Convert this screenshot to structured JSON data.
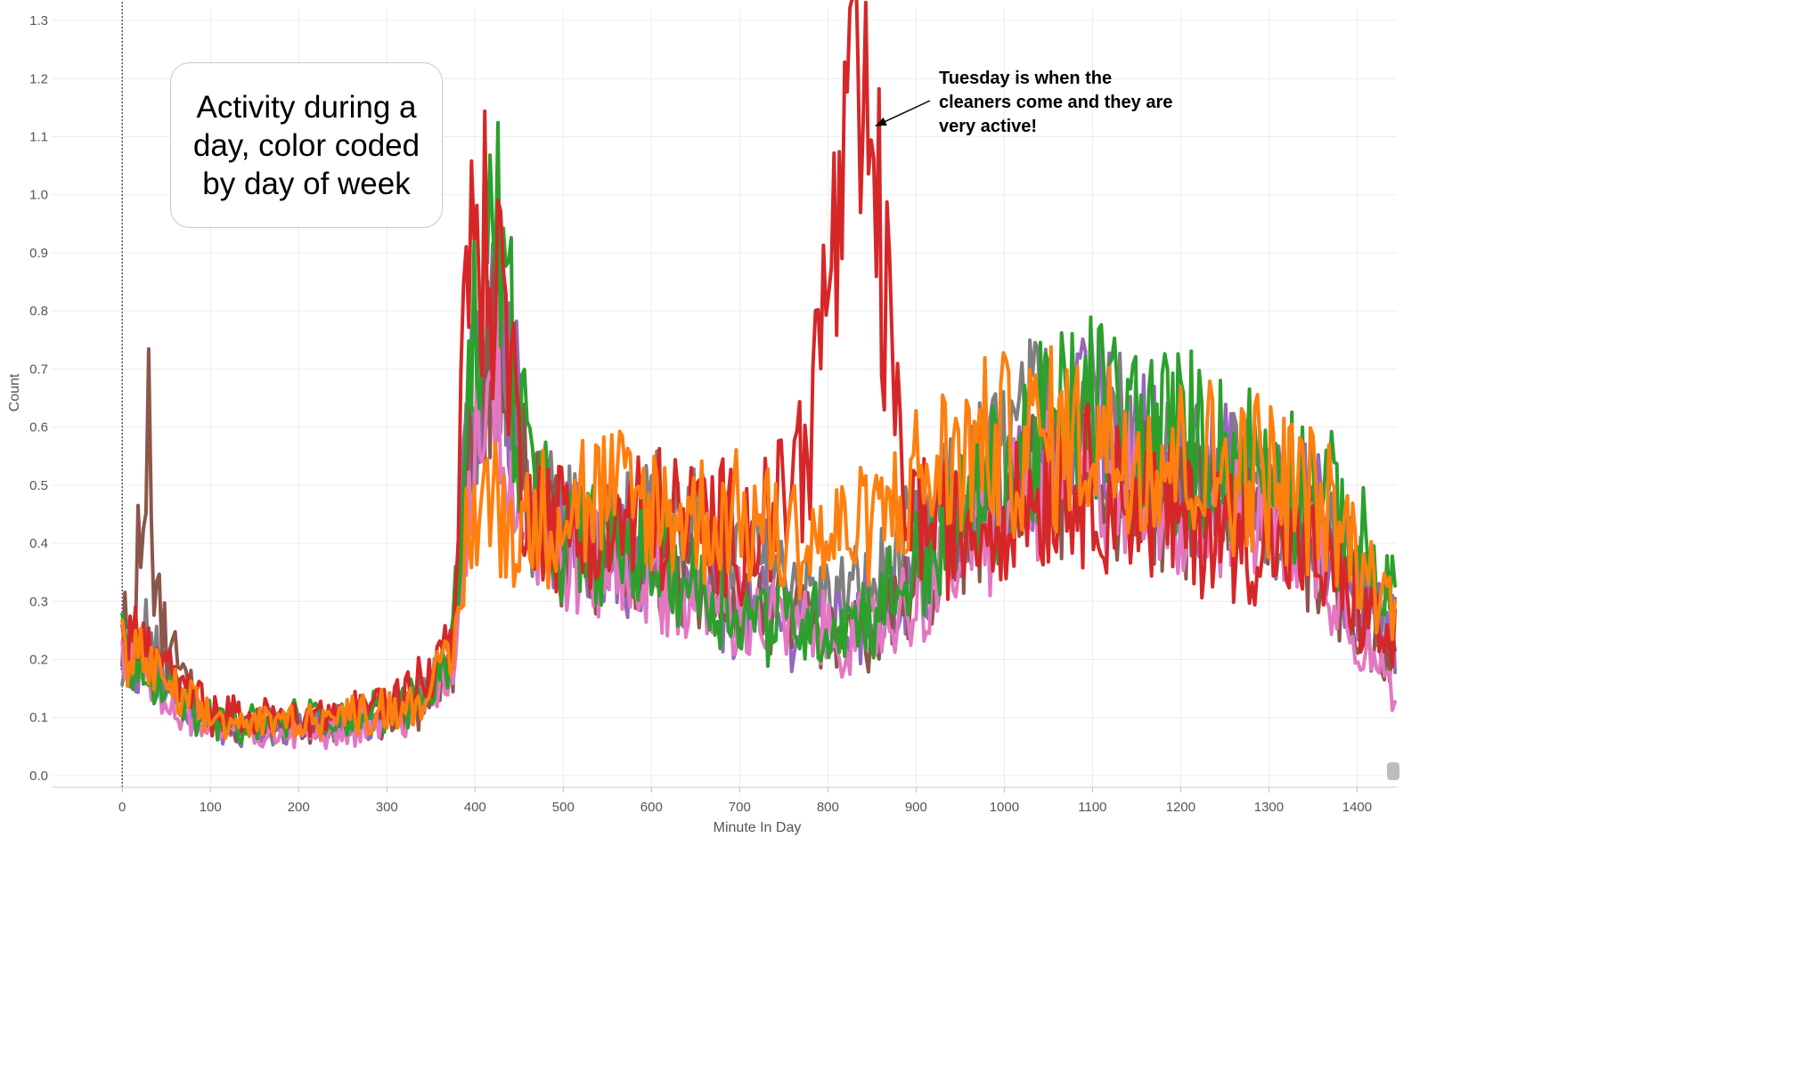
{
  "chart_data": {
    "type": "line",
    "title": "",
    "xlabel": "Minute In Day",
    "ylabel": "Count",
    "xlim": [
      -80,
      1445
    ],
    "ylim": [
      -0.02,
      1.32
    ],
    "x_ticks": [
      0,
      100,
      200,
      300,
      400,
      500,
      600,
      700,
      800,
      900,
      1000,
      1100,
      1200,
      1300,
      1400
    ],
    "y_ticks": [
      0.0,
      0.1,
      0.2,
      0.3,
      0.4,
      0.5,
      0.6,
      0.7,
      0.8,
      0.9,
      1.0,
      1.1,
      1.2,
      1.3
    ],
    "x_tick_labels": [
      "0",
      "100",
      "200",
      "300",
      "400",
      "500",
      "600",
      "700",
      "800",
      "900",
      "1000",
      "1100",
      "1200",
      "1300",
      "1400"
    ],
    "y_tick_labels": [
      "0.0",
      "0.1",
      "0.2",
      "0.3",
      "0.4",
      "0.5",
      "0.6",
      "0.7",
      "0.8",
      "0.9",
      "1.0",
      "1.1",
      "1.2",
      "1.3"
    ],
    "grid": true,
    "reference_line_x": 0,
    "callout_text": "Activity during a day, color coded by day of week",
    "annotation": {
      "text": "Tuesday is when the cleaners come and they are very active!",
      "arrow_from": [
        870,
        1.18
      ],
      "arrow_to": [
        850,
        1.12
      ]
    },
    "series": [
      {
        "color": "#7f7f7f",
        "x": [
          0,
          25,
          50,
          75,
          100,
          130,
          160,
          200,
          240,
          280,
          320,
          350,
          375,
          390,
          410,
          430,
          450,
          475,
          500,
          550,
          600,
          650,
          700,
          750,
          800,
          850,
          900,
          950,
          1000,
          1050,
          1100,
          1150,
          1200,
          1250,
          1300,
          1350,
          1400,
          1440
        ],
        "values": [
          0.15,
          0.25,
          0.16,
          0.12,
          0.09,
          0.08,
          0.08,
          0.08,
          0.09,
          0.1,
          0.12,
          0.15,
          0.2,
          0.55,
          0.75,
          0.82,
          0.5,
          0.45,
          0.42,
          0.43,
          0.45,
          0.42,
          0.38,
          0.35,
          0.3,
          0.32,
          0.4,
          0.48,
          0.55,
          0.62,
          0.65,
          0.58,
          0.52,
          0.5,
          0.48,
          0.45,
          0.33,
          0.28
        ]
      },
      {
        "color": "#9467bd",
        "x": [
          0,
          25,
          50,
          75,
          100,
          130,
          160,
          200,
          240,
          280,
          320,
          350,
          375,
          390,
          410,
          430,
          450,
          475,
          500,
          550,
          600,
          650,
          700,
          750,
          800,
          850,
          900,
          950,
          1000,
          1050,
          1100,
          1150,
          1200,
          1250,
          1300,
          1350,
          1400,
          1440
        ],
        "values": [
          0.18,
          0.2,
          0.15,
          0.12,
          0.09,
          0.08,
          0.08,
          0.08,
          0.09,
          0.1,
          0.11,
          0.14,
          0.2,
          0.55,
          0.8,
          0.75,
          0.6,
          0.45,
          0.4,
          0.38,
          0.35,
          0.3,
          0.28,
          0.27,
          0.25,
          0.27,
          0.33,
          0.4,
          0.48,
          0.55,
          0.6,
          0.56,
          0.52,
          0.5,
          0.48,
          0.45,
          0.3,
          0.25
        ]
      },
      {
        "color": "#8c564b",
        "x": [
          0,
          15,
          30,
          35,
          45,
          60,
          75,
          100,
          130,
          160,
          200,
          240,
          280,
          320,
          350,
          375,
          390,
          410,
          430,
          450,
          475,
          500,
          550,
          600,
          650,
          700,
          750,
          800,
          850,
          900,
          950,
          1000,
          1050,
          1100,
          1150,
          1200,
          1250,
          1300,
          1350,
          1400,
          1440
        ],
        "values": [
          0.25,
          0.3,
          0.68,
          0.35,
          0.25,
          0.2,
          0.15,
          0.1,
          0.09,
          0.08,
          0.08,
          0.09,
          0.1,
          0.11,
          0.14,
          0.2,
          0.5,
          0.7,
          0.8,
          0.55,
          0.45,
          0.4,
          0.37,
          0.36,
          0.33,
          0.3,
          0.27,
          0.23,
          0.24,
          0.32,
          0.4,
          0.46,
          0.5,
          0.53,
          0.5,
          0.47,
          0.45,
          0.43,
          0.4,
          0.27,
          0.2
        ]
      },
      {
        "color": "#e377c2",
        "x": [
          0,
          25,
          50,
          75,
          100,
          130,
          160,
          200,
          240,
          280,
          320,
          350,
          375,
          390,
          410,
          430,
          450,
          475,
          500,
          550,
          600,
          650,
          700,
          750,
          800,
          850,
          900,
          950,
          1000,
          1050,
          1100,
          1150,
          1200,
          1250,
          1300,
          1350,
          1400,
          1440
        ],
        "values": [
          0.2,
          0.18,
          0.12,
          0.1,
          0.08,
          0.07,
          0.07,
          0.07,
          0.08,
          0.09,
          0.1,
          0.13,
          0.18,
          0.45,
          0.7,
          0.65,
          0.45,
          0.4,
          0.38,
          0.36,
          0.34,
          0.3,
          0.28,
          0.26,
          0.24,
          0.25,
          0.3,
          0.38,
          0.45,
          0.5,
          0.52,
          0.5,
          0.48,
          0.46,
          0.45,
          0.4,
          0.25,
          0.15
        ]
      },
      {
        "color": "#2ca02c",
        "x": [
          0,
          25,
          50,
          75,
          100,
          130,
          160,
          200,
          240,
          280,
          320,
          350,
          375,
          390,
          410,
          430,
          450,
          475,
          500,
          550,
          600,
          650,
          700,
          750,
          800,
          850,
          900,
          950,
          1000,
          1050,
          1100,
          1150,
          1200,
          1250,
          1300,
          1350,
          1400,
          1440
        ],
        "values": [
          0.22,
          0.2,
          0.15,
          0.12,
          0.1,
          0.09,
          0.09,
          0.1,
          0.1,
          0.11,
          0.12,
          0.16,
          0.22,
          0.65,
          0.9,
          0.95,
          0.6,
          0.45,
          0.4,
          0.4,
          0.38,
          0.33,
          0.28,
          0.27,
          0.26,
          0.28,
          0.36,
          0.45,
          0.52,
          0.6,
          0.64,
          0.6,
          0.58,
          0.55,
          0.53,
          0.5,
          0.4,
          0.3
        ]
      },
      {
        "color": "#d62728",
        "x": [
          0,
          25,
          50,
          75,
          100,
          130,
          160,
          200,
          240,
          280,
          320,
          350,
          375,
          390,
          400,
          410,
          430,
          450,
          475,
          500,
          550,
          600,
          650,
          700,
          750,
          780,
          800,
          820,
          830,
          850,
          870,
          880,
          900,
          950,
          1000,
          1050,
          1100,
          1150,
          1200,
          1250,
          1300,
          1350,
          1400,
          1440
        ],
        "values": [
          0.25,
          0.23,
          0.18,
          0.14,
          0.11,
          0.1,
          0.1,
          0.1,
          0.11,
          0.12,
          0.14,
          0.18,
          0.25,
          0.8,
          1.0,
          0.9,
          0.85,
          0.55,
          0.45,
          0.43,
          0.42,
          0.45,
          0.43,
          0.42,
          0.47,
          0.6,
          0.85,
          1.0,
          1.15,
          1.05,
          0.75,
          0.55,
          0.45,
          0.42,
          0.45,
          0.5,
          0.5,
          0.47,
          0.44,
          0.42,
          0.4,
          0.37,
          0.3,
          0.22
        ]
      },
      {
        "color": "#ff7f0e",
        "x": [
          0,
          25,
          50,
          75,
          100,
          130,
          160,
          200,
          240,
          280,
          320,
          350,
          375,
          390,
          410,
          430,
          450,
          475,
          500,
          550,
          600,
          650,
          700,
          750,
          800,
          850,
          900,
          950,
          1000,
          1050,
          1100,
          1150,
          1200,
          1250,
          1300,
          1350,
          1400,
          1440
        ],
        "values": [
          0.22,
          0.2,
          0.15,
          0.12,
          0.1,
          0.09,
          0.09,
          0.1,
          0.1,
          0.11,
          0.12,
          0.15,
          0.2,
          0.4,
          0.5,
          0.45,
          0.42,
          0.45,
          0.47,
          0.48,
          0.46,
          0.44,
          0.45,
          0.42,
          0.4,
          0.43,
          0.5,
          0.55,
          0.57,
          0.58,
          0.58,
          0.57,
          0.55,
          0.53,
          0.52,
          0.48,
          0.38,
          0.28
        ]
      }
    ]
  }
}
